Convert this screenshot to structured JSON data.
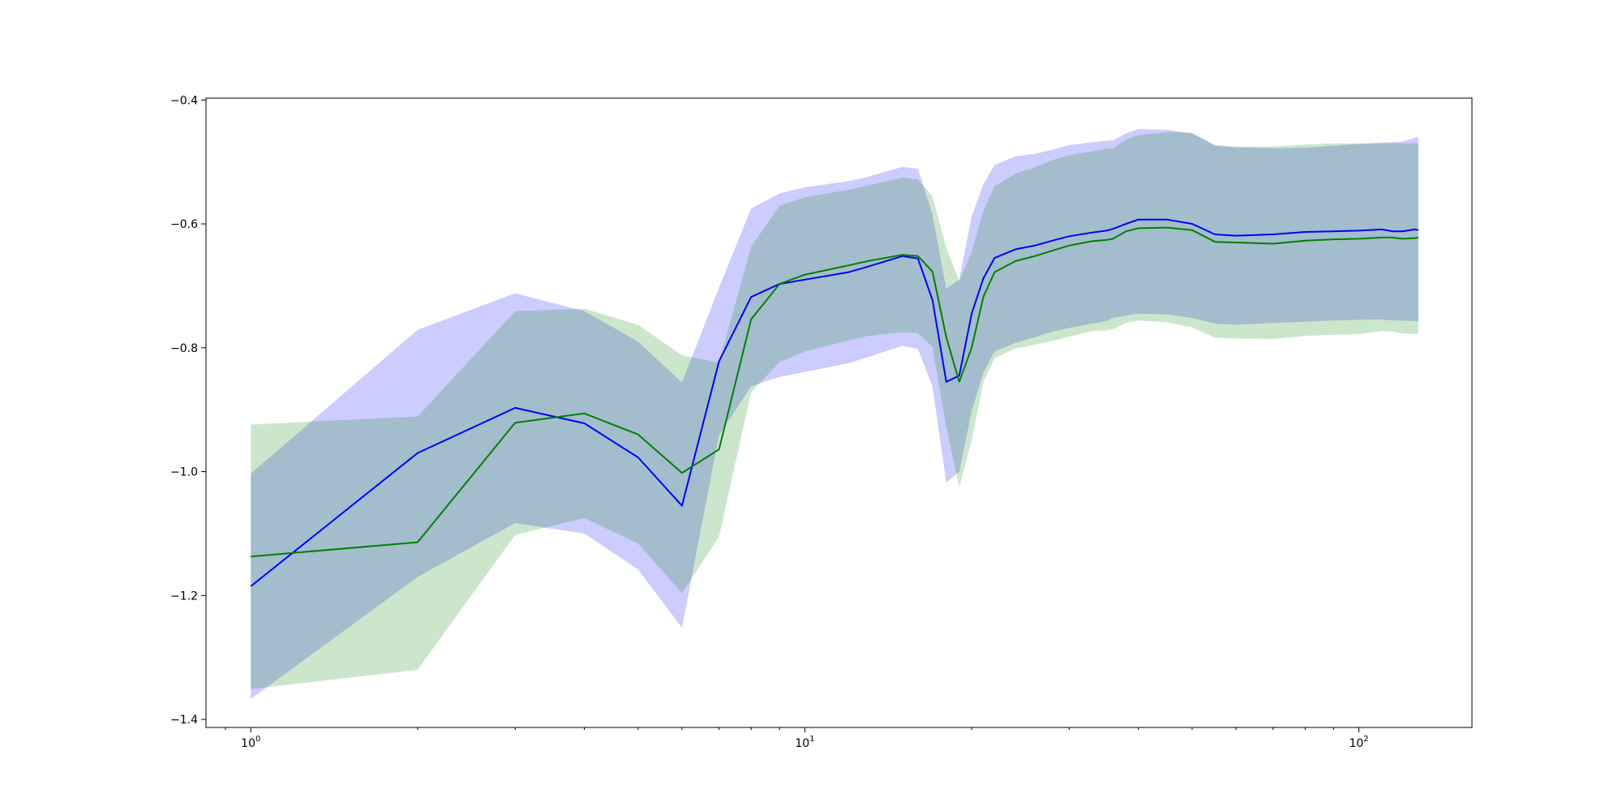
{
  "chart_data": {
    "type": "line",
    "xscale": "log",
    "xlim": [
      0.83,
      160
    ],
    "ylim": [
      -1.413,
      -0.397
    ],
    "x_ticks": [
      {
        "value": 1,
        "mant": "10",
        "exp": "0"
      },
      {
        "value": 10,
        "mant": "10",
        "exp": "1"
      },
      {
        "value": 100,
        "mant": "10",
        "exp": "2"
      }
    ],
    "y_ticks": [
      {
        "value": -1.4,
        "label": "−1.4"
      },
      {
        "value": -1.2,
        "label": "−1.2"
      },
      {
        "value": -1.0,
        "label": "−1.0"
      },
      {
        "value": -0.8,
        "label": "−0.8"
      },
      {
        "value": -0.6,
        "label": "−0.6"
      },
      {
        "value": -0.4,
        "label": "−0.4"
      }
    ],
    "series": [
      {
        "color": "#0000ff",
        "band_color": "#0000ff",
        "band_opacity": 0.2,
        "x": [
          1,
          2,
          3,
          4,
          5,
          6,
          7,
          8,
          9,
          10,
          12,
          13,
          15,
          16,
          17,
          18,
          19,
          20,
          21,
          22,
          24,
          26,
          28,
          30,
          33,
          35,
          36,
          38,
          40,
          45,
          50,
          55,
          60,
          70,
          80,
          90,
          100,
          110,
          115,
          120,
          126,
          128
        ],
        "y": [
          -1.185,
          -0.97,
          -0.897,
          -0.922,
          -0.977,
          -1.055,
          -0.822,
          -0.718,
          -0.697,
          -0.69,
          -0.678,
          -0.669,
          -0.652,
          -0.656,
          -0.723,
          -0.855,
          -0.845,
          -0.745,
          -0.688,
          -0.655,
          -0.641,
          -0.635,
          -0.627,
          -0.62,
          -0.614,
          -0.611,
          -0.608,
          -0.6,
          -0.593,
          -0.593,
          -0.6,
          -0.617,
          -0.619,
          -0.617,
          -0.613,
          -0.612,
          -0.611,
          -0.609,
          -0.612,
          -0.612,
          -0.609,
          -0.61
        ],
        "upper": [
          -1.003,
          -0.771,
          -0.712,
          -0.741,
          -0.79,
          -0.856,
          -0.703,
          -0.575,
          -0.551,
          -0.541,
          -0.531,
          -0.524,
          -0.508,
          -0.511,
          -0.585,
          -0.705,
          -0.69,
          -0.588,
          -0.536,
          -0.505,
          -0.491,
          -0.487,
          -0.48,
          -0.473,
          -0.468,
          -0.466,
          -0.465,
          -0.454,
          -0.447,
          -0.448,
          -0.454,
          -0.473,
          -0.476,
          -0.478,
          -0.477,
          -0.474,
          -0.471,
          -0.469,
          -0.468,
          -0.467,
          -0.461,
          -0.46
        ],
        "lower": [
          -1.367,
          -1.17,
          -1.083,
          -1.1,
          -1.158,
          -1.252,
          -0.941,
          -0.862,
          -0.847,
          -0.839,
          -0.825,
          -0.815,
          -0.797,
          -0.802,
          -0.863,
          -1.018,
          -1.0,
          -0.902,
          -0.84,
          -0.806,
          -0.792,
          -0.783,
          -0.774,
          -0.768,
          -0.761,
          -0.757,
          -0.752,
          -0.748,
          -0.745,
          -0.746,
          -0.752,
          -0.761,
          -0.763,
          -0.76,
          -0.758,
          -0.756,
          -0.755,
          -0.754,
          -0.756,
          -0.756,
          -0.757,
          -0.757
        ]
      },
      {
        "color": "#008000",
        "band_color": "#008000",
        "band_opacity": 0.2,
        "x": [
          1,
          2,
          3,
          4,
          5,
          6,
          7,
          8,
          9,
          10,
          12,
          13,
          15,
          16,
          17,
          18,
          19,
          20,
          21,
          22,
          24,
          26,
          28,
          30,
          33,
          35,
          36,
          38,
          40,
          45,
          50,
          55,
          60,
          70,
          80,
          90,
          100,
          110,
          115,
          120,
          126,
          128
        ],
        "y": [
          -1.137,
          -1.114,
          -0.921,
          -0.906,
          -0.94,
          -1.002,
          -0.964,
          -0.754,
          -0.697,
          -0.682,
          -0.667,
          -0.66,
          -0.65,
          -0.652,
          -0.677,
          -0.783,
          -0.855,
          -0.8,
          -0.718,
          -0.678,
          -0.66,
          -0.652,
          -0.643,
          -0.635,
          -0.628,
          -0.626,
          -0.624,
          -0.612,
          -0.607,
          -0.606,
          -0.61,
          -0.629,
          -0.63,
          -0.632,
          -0.627,
          -0.625,
          -0.624,
          -0.622,
          -0.622,
          -0.624,
          -0.623,
          -0.622
        ],
        "upper": [
          -0.924,
          -0.911,
          -0.741,
          -0.737,
          -0.763,
          -0.812,
          -0.824,
          -0.637,
          -0.571,
          -0.557,
          -0.545,
          -0.538,
          -0.525,
          -0.528,
          -0.556,
          -0.638,
          -0.693,
          -0.645,
          -0.579,
          -0.539,
          -0.519,
          -0.509,
          -0.497,
          -0.489,
          -0.483,
          -0.479,
          -0.478,
          -0.464,
          -0.457,
          -0.452,
          -0.453,
          -0.474,
          -0.476,
          -0.475,
          -0.472,
          -0.47,
          -0.47,
          -0.47,
          -0.47,
          -0.47,
          -0.47,
          -0.47
        ],
        "lower": [
          -1.351,
          -1.32,
          -1.102,
          -1.075,
          -1.116,
          -1.196,
          -1.105,
          -0.872,
          -0.823,
          -0.806,
          -0.788,
          -0.781,
          -0.775,
          -0.776,
          -0.799,
          -0.928,
          -1.025,
          -0.95,
          -0.856,
          -0.817,
          -0.801,
          -0.795,
          -0.789,
          -0.782,
          -0.773,
          -0.772,
          -0.77,
          -0.76,
          -0.756,
          -0.759,
          -0.767,
          -0.784,
          -0.785,
          -0.786,
          -0.781,
          -0.779,
          -0.778,
          -0.773,
          -0.774,
          -0.777,
          -0.778,
          -0.777
        ]
      }
    ]
  }
}
